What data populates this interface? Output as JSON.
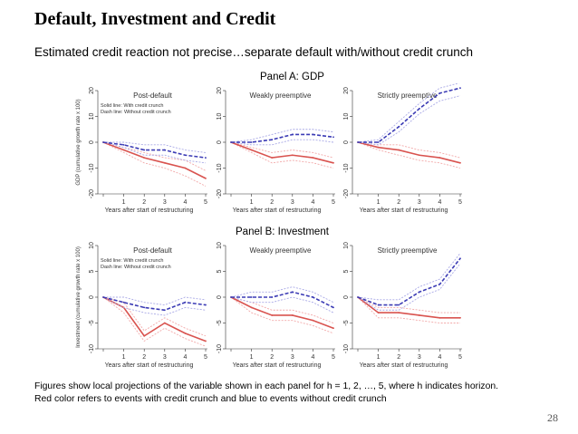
{
  "slide": {
    "title": "Default, Investment and Credit",
    "subtitle": "Estimated credit reaction not precise…separate default with/without credit crunch",
    "footnote_line1": "Figures show local projections of the variable shown in each panel for h = 1, 2, …, 5, where h indicates horizon.",
    "footnote_line2": "Red color refers to events with credit crunch and blue to events without credit crunch",
    "page_number": "28"
  },
  "colors": {
    "red": "#d9534f",
    "red_band": "#f2a9a9",
    "blue": "#3b3bb5",
    "blue_band": "#a9a9e6",
    "axis": "#333333"
  },
  "chart_data": [
    {
      "panel": "Panel A: GDP",
      "type": "line",
      "ylabel": "GDP (cumulative growth rate x 100)",
      "xlabel": "Years after start of restructuring",
      "legend": [
        "Solid line: With credit crunch",
        "Dash line: Without credit crunch"
      ],
      "legend_position": "top-left",
      "subcharts": [
        {
          "title": "Post-default",
          "x": [
            0,
            1,
            2,
            3,
            4,
            5
          ],
          "ylim": [
            -20,
            20
          ],
          "yticks": [
            -20,
            -10,
            0,
            10,
            20
          ],
          "series": [
            {
              "style": "solid",
              "color": "red",
              "values": [
                0,
                -3,
                -6,
                -8,
                -10,
                -14
              ],
              "lower": [
                0,
                -4,
                -8,
                -10,
                -13,
                -17
              ],
              "upper": [
                0,
                -2,
                -4,
                -6,
                -7,
                -11
              ]
            },
            {
              "style": "dash",
              "color": "blue",
              "values": [
                0,
                -1,
                -3,
                -3,
                -5,
                -6
              ],
              "lower": [
                0,
                -2,
                -5,
                -5,
                -7,
                -8
              ],
              "upper": [
                0,
                0,
                -1,
                -1,
                -3,
                -4
              ]
            }
          ]
        },
        {
          "title": "Weakly preemptive",
          "x": [
            0,
            1,
            2,
            3,
            4,
            5
          ],
          "ylim": [
            -20,
            20
          ],
          "yticks": [
            -20,
            -10,
            0,
            10,
            20
          ],
          "series": [
            {
              "style": "solid",
              "color": "red",
              "values": [
                0,
                -3,
                -6,
                -5,
                -6,
                -8
              ],
              "lower": [
                0,
                -4,
                -8,
                -7,
                -8,
                -10
              ],
              "upper": [
                0,
                -2,
                -4,
                -3,
                -4,
                -6
              ]
            },
            {
              "style": "dash",
              "color": "blue",
              "values": [
                0,
                0,
                1,
                3,
                3,
                2
              ],
              "lower": [
                0,
                -1,
                -1,
                1,
                1,
                0
              ],
              "upper": [
                0,
                1,
                3,
                5,
                5,
                4
              ]
            }
          ]
        },
        {
          "title": "Strictly preemptive",
          "x": [
            0,
            1,
            2,
            3,
            4,
            5
          ],
          "ylim": [
            -20,
            20
          ],
          "yticks": [
            -20,
            -10,
            0,
            10,
            20
          ],
          "series": [
            {
              "style": "solid",
              "color": "red",
              "values": [
                0,
                -2,
                -3,
                -5,
                -6,
                -8
              ],
              "lower": [
                0,
                -3,
                -5,
                -7,
                -8,
                -10
              ],
              "upper": [
                0,
                -1,
                -1,
                -3,
                -4,
                -6
              ]
            },
            {
              "style": "dash",
              "color": "blue",
              "values": [
                0,
                0,
                6,
                13,
                19,
                21
              ],
              "lower": [
                0,
                -1,
                4,
                11,
                16,
                18
              ],
              "upper": [
                0,
                1,
                8,
                15,
                21,
                23
              ]
            }
          ]
        }
      ]
    },
    {
      "panel": "Panel B: Investment",
      "type": "line",
      "ylabel": "Investment (cumulative growth rate x 100)",
      "xlabel": "Years after start of restructuring",
      "legend": [
        "Solid line: With credit crunch",
        "Dash line: Without credit crunch"
      ],
      "legend_position": "top-left",
      "subcharts": [
        {
          "title": "Post-default",
          "x": [
            0,
            1,
            2,
            3,
            4,
            5
          ],
          "ylim": [
            -10,
            10
          ],
          "yticks": [
            -10,
            -5,
            0,
            5,
            10
          ],
          "series": [
            {
              "style": "solid",
              "color": "red",
              "values": [
                0,
                -2,
                -7.5,
                -5,
                -7,
                -8.5
              ],
              "lower": [
                0,
                -3,
                -8.5,
                -6,
                -8,
                -9.5
              ],
              "upper": [
                0,
                -1,
                -6.5,
                -4,
                -6,
                -7.5
              ]
            },
            {
              "style": "dash",
              "color": "blue",
              "values": [
                0,
                -1,
                -2,
                -2.5,
                -1,
                -1.5
              ],
              "lower": [
                0,
                -2,
                -3,
                -3.5,
                -2,
                -2.5
              ],
              "upper": [
                0,
                0,
                -1,
                -1.5,
                0,
                -0.5
              ]
            }
          ]
        },
        {
          "title": "Weakly preemptive",
          "x": [
            0,
            1,
            2,
            3,
            4,
            5
          ],
          "ylim": [
            -10,
            10
          ],
          "yticks": [
            -10,
            -5,
            0,
            5,
            10
          ],
          "series": [
            {
              "style": "solid",
              "color": "red",
              "values": [
                0,
                -2,
                -3.5,
                -3.5,
                -4.5,
                -6
              ],
              "lower": [
                0,
                -3,
                -4.5,
                -4.5,
                -5.5,
                -7
              ],
              "upper": [
                0,
                -1,
                -2.5,
                -2.5,
                -3.5,
                -5
              ]
            },
            {
              "style": "dash",
              "color": "blue",
              "values": [
                0,
                0,
                0,
                1,
                0,
                -2
              ],
              "lower": [
                0,
                -1,
                -1,
                0,
                -1,
                -3
              ],
              "upper": [
                0,
                1,
                1,
                2,
                1,
                -1
              ]
            }
          ]
        },
        {
          "title": "Strictly preemptive",
          "x": [
            0,
            1,
            2,
            3,
            4,
            5
          ],
          "ylim": [
            -10,
            10
          ],
          "yticks": [
            -10,
            -5,
            0,
            5,
            10
          ],
          "series": [
            {
              "style": "solid",
              "color": "red",
              "values": [
                0,
                -3,
                -3,
                -3.5,
                -4,
                -4
              ],
              "lower": [
                0,
                -4,
                -4,
                -4.5,
                -5,
                -5
              ],
              "upper": [
                0,
                -2,
                -2,
                -2.5,
                -3,
                -3
              ]
            },
            {
              "style": "dash",
              "color": "blue",
              "values": [
                0,
                -1.5,
                -1.5,
                1,
                2.5,
                7.5
              ],
              "lower": [
                0,
                -2.5,
                -2.5,
                0,
                1.5,
                6.5
              ],
              "upper": [
                0,
                -0.5,
                -0.5,
                2,
                3.5,
                8.5
              ]
            }
          ]
        }
      ]
    }
  ]
}
